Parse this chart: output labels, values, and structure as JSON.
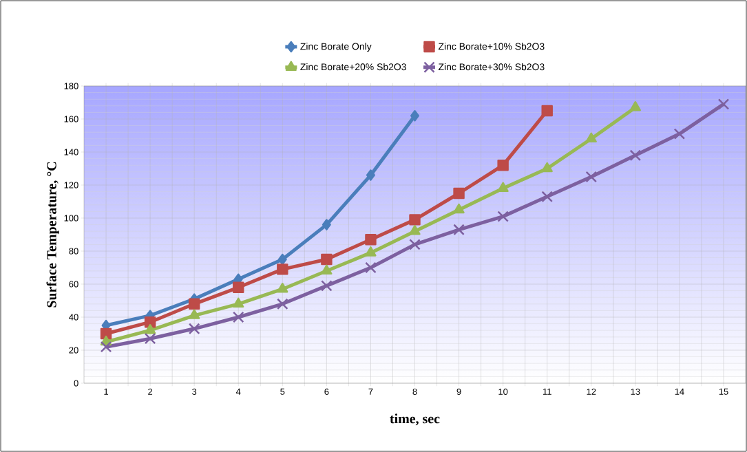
{
  "chart_data": {
    "type": "line",
    "xlabel": "time, sec",
    "ylabel": "Surface Temperature, °C",
    "categories": [
      "1",
      "2",
      "3",
      "4",
      "5",
      "6",
      "7",
      "8",
      "9",
      "10",
      "11",
      "12",
      "13",
      "14",
      "15"
    ],
    "ylim": [
      0,
      180
    ],
    "yticks": [
      0,
      20,
      40,
      60,
      80,
      100,
      120,
      140,
      160,
      180
    ],
    "grid": true,
    "legend": "top",
    "series": [
      {
        "name": "Zinc Borate Only",
        "color": "#4a7ebb",
        "marker": "diamond",
        "values": [
          35,
          41,
          51,
          63,
          75,
          96,
          126,
          162,
          null,
          null,
          null,
          null,
          null,
          null,
          null
        ]
      },
      {
        "name": "Zinc Borate+10% Sb2O3",
        "color": "#be4b48",
        "marker": "square",
        "values": [
          30,
          37,
          48,
          58,
          69,
          75,
          87,
          99,
          115,
          132,
          165,
          null,
          null,
          null,
          null
        ]
      },
      {
        "name": "Zinc Borate+20% Sb2O3",
        "color": "#98b954",
        "marker": "triangle",
        "values": [
          25,
          32,
          41,
          48,
          57,
          68,
          79,
          92,
          105,
          118,
          130,
          148,
          167,
          null,
          null
        ]
      },
      {
        "name": "Zinc Borate+30% Sb2O3",
        "color": "#7d60a0",
        "marker": "cross",
        "values": [
          22,
          27,
          33,
          40,
          48,
          59,
          70,
          84,
          93,
          101,
          113,
          125,
          138,
          151,
          169
        ]
      }
    ]
  }
}
